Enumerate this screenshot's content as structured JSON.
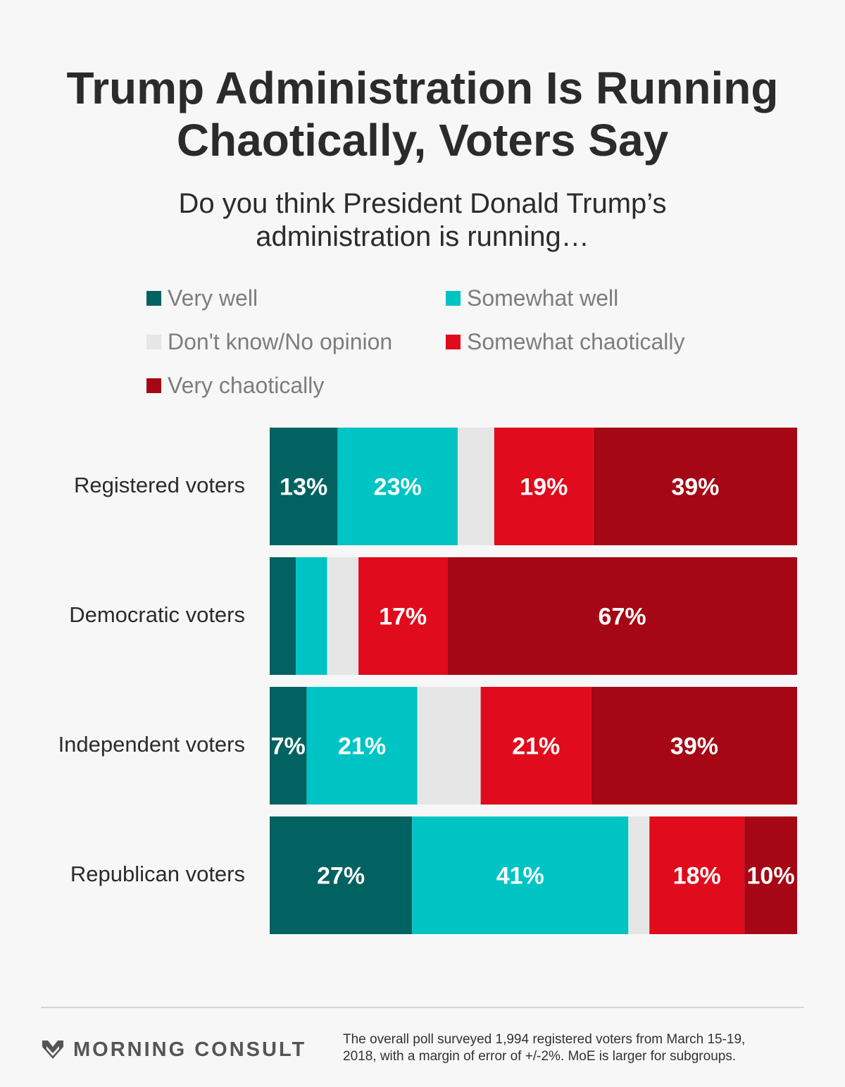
{
  "header": {
    "title_line1": "Trump Administration Is Running",
    "title_line2": "Chaotically, Voters Say",
    "subtitle_line1": "Do you think President Donald Trump’s",
    "subtitle_line2": "administration is running…"
  },
  "chart_data": {
    "type": "bar",
    "orientation": "horizontal",
    "stacked": true,
    "title": "Trump Administration Is Running Chaotically, Voters Say",
    "subtitle": "Do you think President Donald Trump’s administration is running…",
    "categories": [
      "Registered voters",
      "Democratic voters",
      "Independent voters",
      "Republican voters"
    ],
    "series": [
      {
        "name": "Very well",
        "color": "#026161",
        "values": [
          13,
          5,
          7,
          27
        ],
        "labels": [
          "13%",
          "",
          "7%",
          "27%"
        ]
      },
      {
        "name": "Somewhat well",
        "color": "#00c4c4",
        "values": [
          23,
          6,
          21,
          41
        ],
        "labels": [
          "23%",
          "",
          "21%",
          "41%"
        ]
      },
      {
        "name": "Don't know/No opinion",
        "color": "#e6e6e6",
        "values": [
          7,
          6,
          12,
          4
        ],
        "labels": [
          "",
          "",
          "",
          ""
        ]
      },
      {
        "name": "Somewhat chaotically",
        "color": "#e00b1c",
        "values": [
          19,
          17,
          21,
          18
        ],
        "labels": [
          "19%",
          "17%",
          "21%",
          "18%"
        ]
      },
      {
        "name": "Very chaotically",
        "color": "#a50714",
        "values": [
          39,
          67,
          39,
          10
        ],
        "labels": [
          "39%",
          "67%",
          "39%",
          "10%"
        ]
      }
    ],
    "legend_position": "top",
    "grid": false
  },
  "footer": {
    "brand": "MORNING CONSULT",
    "brand_icon": "morning-consult-logo-icon",
    "note_line1": "The overall poll surveyed 1,994 registered voters from March 15-19,",
    "note_line2": "2018, with a margin of error of +/-2%. MoE is larger for subgroups."
  }
}
